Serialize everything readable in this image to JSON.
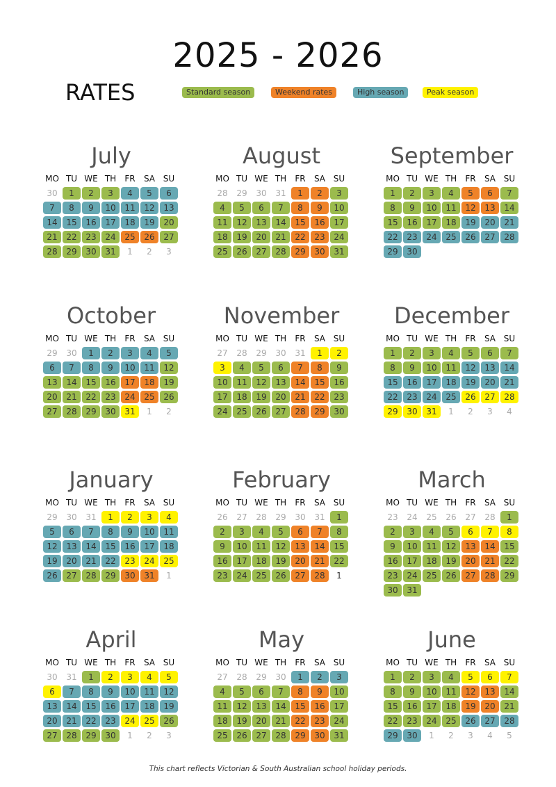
{
  "title": "2025 - 2026",
  "rates_label": "RATES",
  "legend": [
    {
      "code": "S",
      "label": "Standard season",
      "color": "#9bbb4d"
    },
    {
      "code": "W",
      "label": "Weekend rates",
      "color": "#ef8228"
    },
    {
      "code": "H",
      "label": "High season",
      "color": "#66a8b3"
    },
    {
      "code": "P",
      "label": "Peak season",
      "color": "#fff200"
    }
  ],
  "weekdays": [
    "MO",
    "TU",
    "WE",
    "TH",
    "FR",
    "SA",
    "SU"
  ],
  "months": [
    {
      "name": "July",
      "lead": [
        30
      ],
      "codes": "SSSHHHHHHHHHHHHHHHHSSSSSWWSSSSS",
      "trail": [
        1,
        2,
        3
      ]
    },
    {
      "name": "August",
      "lead": [
        28,
        29,
        30,
        31
      ],
      "codes": "WWSSSSSWWSSSSSWWSSSSSWWSSSSSWWS",
      "trail": []
    },
    {
      "name": "September",
      "lead": [],
      "codes": "SSSSWWSSSSSWWSSSSSHHHHHHHHHHHH",
      "trail": []
    },
    {
      "name": "October",
      "lead": [
        29,
        30
      ],
      "codes": "HHHHHHHHHHHSSSSSWWSSSSSWWSSSSSP",
      "trail": [
        1,
        2
      ]
    },
    {
      "name": "November",
      "lead": [
        27,
        28,
        29,
        30,
        31
      ],
      "codes": "PPPSSSWWSSSSSWWSSSSSWWSSSSSWWS",
      "trail": []
    },
    {
      "name": "December",
      "lead": [],
      "codes": "SSSSSSSSSSSHHHHHHHHHHHHHHPPPPPP",
      "trail": [
        1,
        2,
        3,
        4
      ]
    },
    {
      "name": "January",
      "lead": [
        29,
        30,
        31
      ],
      "codes": "PPPPHHHHHHHHHHHHHHHHHHPPPHSSSWW",
      "trail": [
        1
      ]
    },
    {
      "name": "February",
      "lead": [
        26,
        27,
        28,
        29,
        30,
        31
      ],
      "codes": "SSSSSWWSSSSSWWSSSSSWWSSSSSWW",
      "trail": [
        1
      ],
      "trail_dark": true
    },
    {
      "name": "March",
      "lead": [
        23,
        24,
        25,
        26,
        27,
        28
      ],
      "codes": "SSSSSPPPSSSSWWSSSSSWWSSSSSWWSSS",
      "trail": []
    },
    {
      "name": "April",
      "lead": [
        30,
        31
      ],
      "codes": "SPPPPPHHHHHHHHHHHHHHHHHPPSSSSS",
      "trail": [
        1,
        2,
        3
      ]
    },
    {
      "name": "May",
      "lead": [
        27,
        28,
        29,
        30
      ],
      "codes": "HHHSSSSWWSSSSSWWSSSSSWWSSSSSWWS",
      "trail": []
    },
    {
      "name": "June",
      "lead": [],
      "codes": "SSSSPPPSSSSWWSSSSSWWSSSSSHHHHH",
      "trail": [
        1,
        2,
        3,
        4,
        5
      ]
    }
  ],
  "footer": "This chart reflects Victorian & South Australian school holiday periods."
}
